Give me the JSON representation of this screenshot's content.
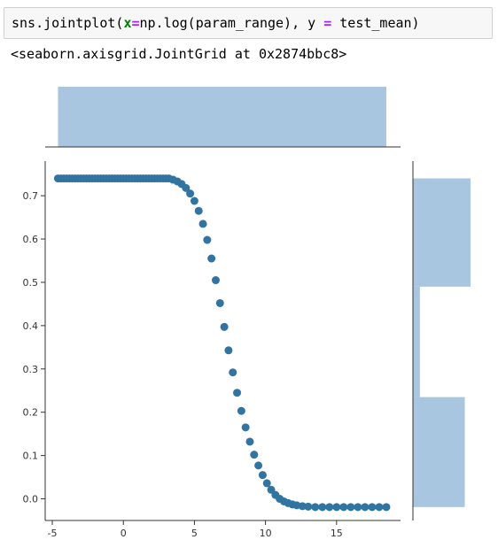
{
  "cell": {
    "code": {
      "fn": "sns.jointplot(",
      "x_kw": "x",
      "eq1": "=",
      "x_expr": "np.log(param_range), ",
      "y_kw": "y",
      "eq2": " = ",
      "y_expr": "test_mean)"
    },
    "output": "<seaborn.axisgrid.JointGrid at 0x2874bbc8>"
  },
  "chart_data": {
    "type": "scatter",
    "xlim": [
      -5.5,
      19.5
    ],
    "ylim": [
      -0.05,
      0.78
    ],
    "x_ticks": [
      -5,
      0,
      5,
      10,
      15
    ],
    "y_ticks": [
      0.0,
      0.1,
      0.2,
      0.3,
      0.4,
      0.5,
      0.6,
      0.7
    ],
    "x_tick_labels": [
      "-5",
      "0",
      "5",
      "10",
      "15"
    ],
    "y_tick_labels": [
      "0.0",
      "0.1",
      "0.2",
      "0.3",
      "0.4",
      "0.5",
      "0.6",
      "0.7"
    ],
    "point_color": "#3274a1",
    "hist_color": "#a8c6e0",
    "points": {
      "x": [
        -4.6,
        -4.4,
        -4.2,
        -4.0,
        -3.8,
        -3.6,
        -3.4,
        -3.2,
        -3.0,
        -2.8,
        -2.6,
        -2.4,
        -2.2,
        -2.0,
        -1.8,
        -1.6,
        -1.4,
        -1.2,
        -1.0,
        -0.8,
        -0.6,
        -0.4,
        -0.2,
        0.0,
        0.2,
        0.4,
        0.6,
        0.8,
        1.0,
        1.2,
        1.4,
        1.6,
        1.8,
        2.0,
        2.2,
        2.4,
        2.6,
        2.8,
        3.0,
        3.2,
        3.5,
        3.8,
        4.1,
        4.4,
        4.7,
        5.0,
        5.3,
        5.6,
        5.9,
        6.2,
        6.5,
        6.8,
        7.1,
        7.4,
        7.7,
        8.0,
        8.3,
        8.6,
        8.9,
        9.2,
        9.5,
        9.8,
        10.1,
        10.4,
        10.7,
        11.0,
        11.3,
        11.6,
        11.9,
        12.2,
        12.6,
        13.0,
        13.5,
        14.0,
        14.5,
        15.0,
        15.5,
        16.0,
        16.5,
        17.0,
        17.5,
        18.0,
        18.5
      ],
      "y": [
        0.74,
        0.74,
        0.74,
        0.74,
        0.74,
        0.74,
        0.74,
        0.74,
        0.74,
        0.74,
        0.74,
        0.74,
        0.74,
        0.74,
        0.74,
        0.74,
        0.74,
        0.74,
        0.74,
        0.74,
        0.74,
        0.74,
        0.74,
        0.74,
        0.74,
        0.74,
        0.74,
        0.74,
        0.74,
        0.74,
        0.74,
        0.74,
        0.74,
        0.74,
        0.74,
        0.74,
        0.74,
        0.74,
        0.74,
        0.74,
        0.737,
        0.733,
        0.727,
        0.718,
        0.705,
        0.688,
        0.665,
        0.635,
        0.598,
        0.555,
        0.505,
        0.452,
        0.397,
        0.343,
        0.292,
        0.245,
        0.203,
        0.165,
        0.132,
        0.102,
        0.077,
        0.055,
        0.036,
        0.021,
        0.009,
        0.0,
        -0.006,
        -0.01,
        -0.013,
        -0.015,
        -0.017,
        -0.018,
        -0.019,
        -0.019,
        -0.019,
        -0.019,
        -0.019,
        -0.019,
        -0.019,
        -0.019,
        -0.019,
        -0.019,
        -0.019
      ]
    },
    "x_hist": [
      {
        "from": -4.6,
        "to": 18.5,
        "value": 1
      }
    ],
    "y_hist": [
      {
        "from": 0.49,
        "to": 0.74,
        "value": 1.0
      },
      {
        "from": 0.235,
        "to": 0.49,
        "value": 0.12
      },
      {
        "from": -0.019,
        "to": 0.235,
        "value": 0.9
      }
    ]
  }
}
